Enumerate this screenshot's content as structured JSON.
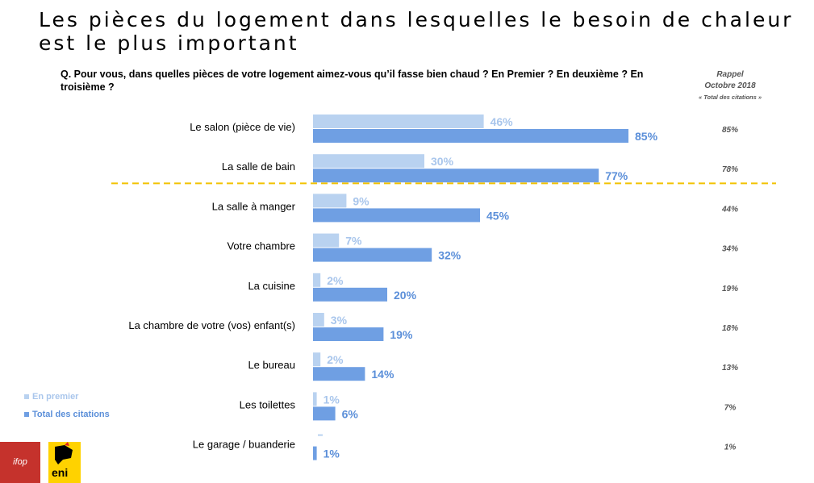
{
  "title": "Les pièces du logement dans lesquelles le besoin de chaleur est le plus important",
  "question": "Q. Pour vous, dans quelles pièces de votre logement aimez-vous qu’il fasse bien chaud ? En Premier ? En deuxième ? En troisième ?",
  "rappel": {
    "line1": "Rappel",
    "line2": "Octobre 2018",
    "line3": "« Total des citations »"
  },
  "legend": {
    "first": "En premier",
    "total": "Total des citations"
  },
  "logos": {
    "ifop": "ifop",
    "eni": "eni"
  },
  "colors": {
    "first": "#b9d2f0",
    "total": "#6f9fe3",
    "first_label": "#a9c6ec",
    "total_label": "#5b8fd9",
    "separator": "#f2c200"
  },
  "chart_data": {
    "type": "bar",
    "orientation": "horizontal",
    "categories": [
      "Le salon (pièce de vie)",
      "La salle de bain",
      "La salle à manger",
      "Votre chambre",
      "La cuisine",
      "La chambre de votre (vos) enfant(s)",
      "Le bureau",
      "Les toilettes",
      "Le garage / buanderie"
    ],
    "series": [
      {
        "name": "En premier",
        "values": [
          46,
          30,
          9,
          7,
          2,
          3,
          2,
          1,
          0
        ],
        "labels": [
          "46%",
          "30%",
          "9%",
          "7%",
          "2%",
          "3%",
          "2%",
          "1%",
          "-"
        ]
      },
      {
        "name": "Total des citations",
        "values": [
          85,
          77,
          45,
          32,
          20,
          19,
          14,
          6,
          1
        ],
        "labels": [
          "85%",
          "77%",
          "45%",
          "32%",
          "20%",
          "19%",
          "14%",
          "6%",
          "1%"
        ]
      }
    ],
    "reference_labels": [
      "85%",
      "78%",
      "44%",
      "34%",
      "19%",
      "18%",
      "13%",
      "7%",
      "1%"
    ],
    "separator_after_index": 1,
    "xlim": [
      0,
      100
    ],
    "unit": "%"
  }
}
